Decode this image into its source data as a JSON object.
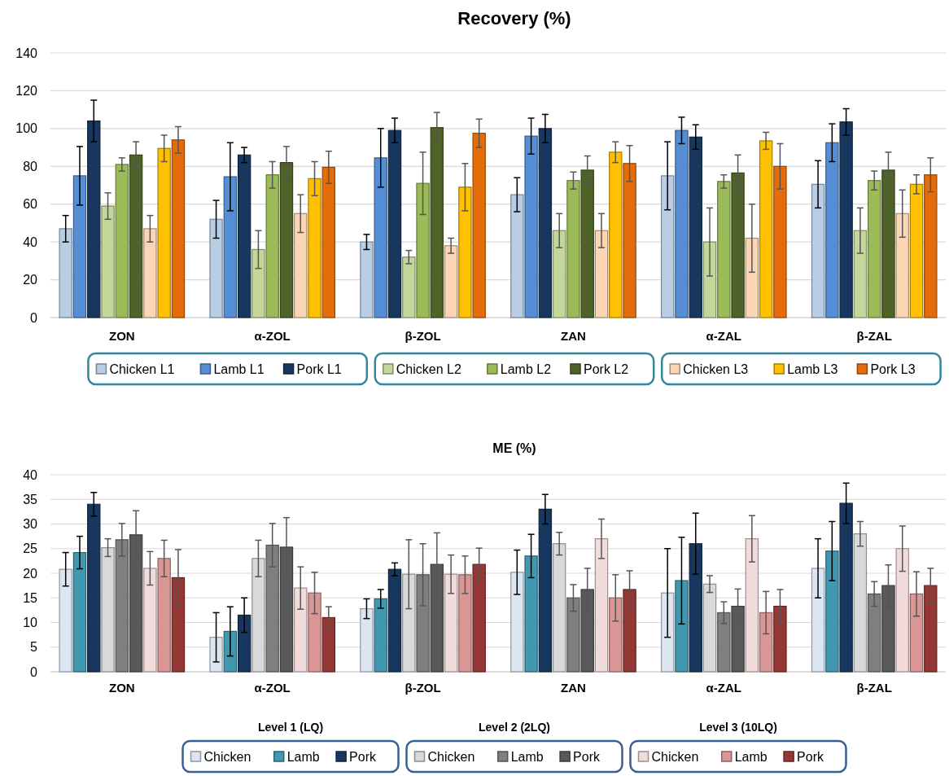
{
  "chart_data": [
    {
      "type": "bar",
      "title": "Recovery (%)",
      "categories": [
        "ZON",
        "α-ZOL",
        "β-ZOL",
        "ZAN",
        "α-ZAL",
        "β-ZAL"
      ],
      "ylim": [
        0,
        140
      ],
      "yticks": [
        0,
        20,
        40,
        60,
        80,
        100,
        120,
        140
      ],
      "grid": "y",
      "legend": "bottom",
      "series": [
        {
          "name": "Chicken L1",
          "color": "#b9cde5",
          "values": [
            47,
            52,
            40,
            65,
            75,
            70.5
          ],
          "errors": [
            7,
            10,
            4,
            9,
            18,
            12.5
          ]
        },
        {
          "name": "Lamb L1",
          "color": "#558ed5",
          "values": [
            75,
            74.5,
            84.5,
            96,
            99,
            92.5
          ],
          "errors": [
            15.5,
            18,
            15.5,
            9.5,
            7,
            10
          ]
        },
        {
          "name": "Pork L1",
          "color": "#17375e",
          "values": [
            104,
            86,
            99,
            100,
            95.5,
            103.5
          ],
          "errors": [
            11,
            4,
            6.5,
            7.5,
            6.5,
            7
          ]
        },
        {
          "name": "Chicken L2",
          "color": "#c4d79b",
          "values": [
            59,
            36,
            32,
            46,
            40,
            46
          ],
          "errors": [
            7,
            10,
            3.5,
            9,
            18,
            12
          ]
        },
        {
          "name": "Lamb L2",
          "color": "#9bbb59",
          "values": [
            81,
            75.5,
            71,
            72.5,
            72,
            72.5
          ],
          "errors": [
            3.5,
            7,
            16.5,
            4.5,
            3.5,
            5
          ]
        },
        {
          "name": "Pork L2",
          "color": "#4f6228",
          "values": [
            86,
            82,
            100.5,
            78,
            76.5,
            78
          ],
          "errors": [
            7,
            8.5,
            8,
            7.5,
            9.5,
            9.5
          ]
        },
        {
          "name": "Chicken L3",
          "color": "#fcd5b5",
          "values": [
            47,
            55,
            38,
            46,
            42,
            55
          ],
          "errors": [
            7,
            10,
            4,
            9,
            18,
            12.5
          ]
        },
        {
          "name": "Lamb L3",
          "color": "#ffc000",
          "values": [
            89.5,
            73.5,
            69,
            87.5,
            93.5,
            70.5
          ],
          "errors": [
            7,
            9,
            12.5,
            5.5,
            4.5,
            5
          ]
        },
        {
          "name": "Pork L3",
          "color": "#e46c0a",
          "values": [
            94,
            79.5,
            97.5,
            81.5,
            80,
            75.5
          ],
          "errors": [
            7,
            8.5,
            7.5,
            9.5,
            12,
            9
          ]
        }
      ]
    },
    {
      "type": "bar",
      "title": "ME (%)",
      "categories": [
        "ZON",
        "α-ZOL",
        "β-ZOL",
        "ZAN",
        "α-ZAL",
        "β-ZAL"
      ],
      "ylim": [
        0,
        40
      ],
      "yticks": [
        0,
        5,
        10,
        15,
        20,
        25,
        30,
        35,
        40
      ],
      "grid": "y",
      "legend": "bottom",
      "annotations": [
        "Level 1 (LQ)",
        "Level 2 (2LQ)",
        "Level 3 (10LQ)"
      ],
      "series": [
        {
          "name": "Chicken",
          "color": "#dce6f2",
          "values": [
            20.8,
            7,
            12.8,
            20.2,
            16,
            21
          ],
          "errors": [
            3.4,
            5,
            2,
            4.5,
            9,
            6
          ]
        },
        {
          "name": "Lamb",
          "color": "#4198af",
          "values": [
            24.2,
            8.2,
            14.8,
            23.5,
            18.5,
            24.5
          ],
          "errors": [
            3.3,
            5,
            1.9,
            4.4,
            8.8,
            6
          ]
        },
        {
          "name": "Pork",
          "color": "#17375e",
          "values": [
            34,
            11.5,
            20.8,
            33,
            26,
            34.2
          ],
          "errors": [
            2.4,
            3.5,
            1.3,
            3,
            6.2,
            4.1
          ]
        },
        {
          "name": "Chicken",
          "color": "#d9d9d9",
          "values": [
            25.2,
            23,
            19.8,
            26,
            17.8,
            28
          ],
          "errors": [
            1.8,
            3.7,
            7,
            2.3,
            1.7,
            2.5
          ]
        },
        {
          "name": "Lamb",
          "color": "#7f7f7f",
          "values": [
            26.8,
            25.7,
            19.7,
            15,
            12,
            15.8
          ],
          "errors": [
            3.3,
            4.4,
            6.3,
            2.7,
            2.2,
            2.5
          ]
        },
        {
          "name": "Pork",
          "color": "#595959",
          "values": [
            27.8,
            25.3,
            21.8,
            16.7,
            13.3,
            17.5
          ],
          "errors": [
            4.9,
            6,
            6.4,
            4.3,
            3.5,
            4.2
          ]
        },
        {
          "name": "Chicken",
          "color": "#f2dcdb",
          "values": [
            21,
            17,
            19.8,
            27,
            27,
            25
          ],
          "errors": [
            3.4,
            4.3,
            3.9,
            4,
            4.7,
            4.6
          ]
        },
        {
          "name": "Lamb",
          "color": "#d99694",
          "values": [
            23,
            16,
            19.7,
            15,
            12,
            15.8
          ],
          "errors": [
            3.7,
            4.2,
            3.8,
            4.7,
            4.3,
            4.5
          ]
        },
        {
          "name": "Pork",
          "color": "#953735",
          "values": [
            19.1,
            11,
            21.8,
            16.7,
            13.3,
            17.5
          ],
          "errors": [
            5.7,
            2.2,
            3.3,
            3.8,
            3.4,
            3.5
          ]
        }
      ]
    }
  ]
}
